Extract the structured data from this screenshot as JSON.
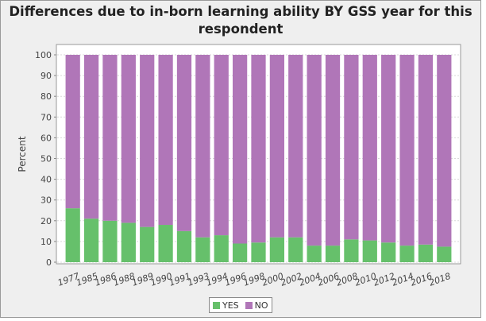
{
  "chart_data": {
    "type": "bar",
    "stacked": true,
    "title": "Differences due to in-born learning ability BY GSS year for this respondent",
    "xlabel": "",
    "ylabel": "Percent",
    "ylim": [
      0,
      100
    ],
    "yticks": [
      0,
      10,
      20,
      30,
      40,
      50,
      60,
      70,
      80,
      90,
      100
    ],
    "grid": true,
    "legend_position": "bottom",
    "categories": [
      "1977",
      "1985",
      "1986",
      "1988",
      "1989",
      "1990",
      "1991",
      "1993",
      "1994",
      "1996",
      "1998",
      "2000",
      "2002",
      "2004",
      "2006",
      "2008",
      "2010",
      "2012",
      "2014",
      "2016",
      "2018"
    ],
    "series": [
      {
        "name": "YES",
        "color": "#66c06b",
        "values": [
          26,
          21,
          20,
          19,
          17,
          18,
          15,
          12,
          13,
          9,
          9.5,
          12,
          12,
          8,
          8,
          11,
          10.5,
          9.5,
          8,
          8.5,
          7.5
        ]
      },
      {
        "name": "NO",
        "color": "#b076b8",
        "values": [
          74,
          79,
          80,
          81,
          83,
          82,
          85,
          88,
          87,
          91,
          90.5,
          88,
          88,
          92,
          92,
          89,
          89.5,
          90.5,
          92,
          91.5,
          92.5
        ]
      }
    ]
  }
}
